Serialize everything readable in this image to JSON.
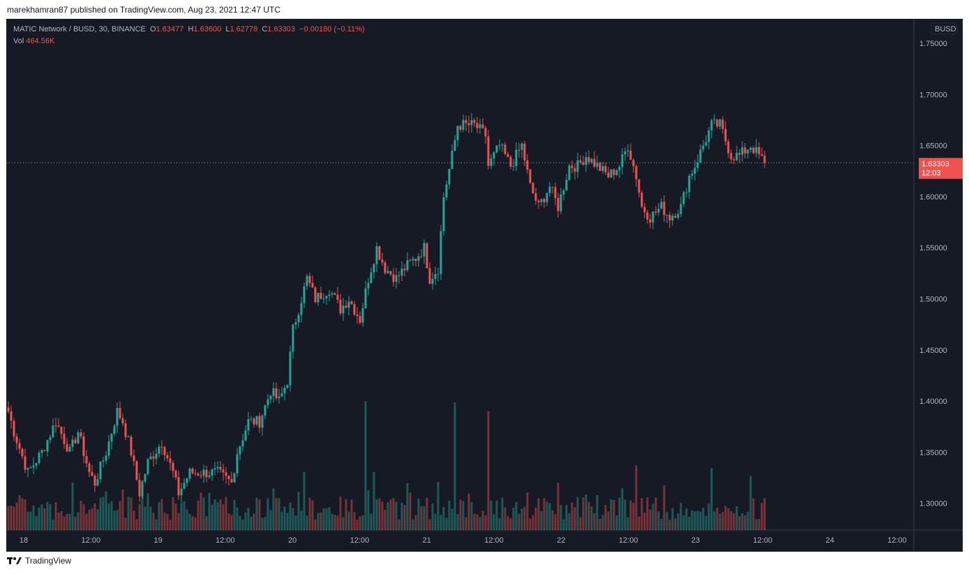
{
  "published": "marekhamran87 published on TradingView.com, Aug 23, 2021 12:47 UTC",
  "legend": {
    "symbol": "MATIC Network / BUSD, 30, BINANCE",
    "o_label": "O",
    "o": "1.63477",
    "h_label": "H",
    "h": "1.63600",
    "l_label": "L",
    "l": "1.62778",
    "c_label": "C",
    "c": "1.63303",
    "change": "−0.00180 (−0.11%)",
    "vol_label": "Vol",
    "vol": "464.56K"
  },
  "footer": {
    "brand": "TradingView"
  },
  "colors": {
    "up": "#26a69a",
    "down": "#ef5350",
    "bg": "#161a25"
  },
  "chart_data": {
    "type": "candlestick",
    "title": "MATIC Network / BUSD, 30, BINANCE",
    "currency_badge": "BUSD",
    "last_price": "1.63303",
    "countdown": "12:03",
    "ylim": [
      1.275,
      1.772
    ],
    "y_ticks": [
      "1.75000",
      "1.70000",
      "1.65000",
      "1.60000",
      "1.55000",
      "1.50000",
      "1.45000",
      "1.40000",
      "1.35000",
      "1.30000"
    ],
    "x_ticks": [
      "18",
      "12:00",
      "19",
      "12:00",
      "20",
      "12:00",
      "21",
      "12:00",
      "22",
      "12:00",
      "23",
      "12:00",
      "24",
      "12:00"
    ],
    "note": "approximate close keypoints [candle index (30m), price]",
    "close_keypoints": [
      [
        0,
        1.39
      ],
      [
        2,
        1.37
      ],
      [
        7,
        1.33
      ],
      [
        12,
        1.35
      ],
      [
        17,
        1.38
      ],
      [
        22,
        1.35
      ],
      [
        25,
        1.37
      ],
      [
        29,
        1.33
      ],
      [
        31,
        1.32
      ],
      [
        35,
        1.35
      ],
      [
        39,
        1.39
      ],
      [
        41,
        1.38
      ],
      [
        44,
        1.35
      ],
      [
        47,
        1.31
      ],
      [
        50,
        1.34
      ],
      [
        55,
        1.36
      ],
      [
        59,
        1.33
      ],
      [
        61,
        1.31
      ],
      [
        65,
        1.33
      ],
      [
        70,
        1.33
      ],
      [
        75,
        1.33
      ],
      [
        80,
        1.32
      ],
      [
        82,
        1.35
      ],
      [
        86,
        1.38
      ],
      [
        90,
        1.38
      ],
      [
        94,
        1.41
      ],
      [
        97,
        1.4
      ],
      [
        100,
        1.42
      ],
      [
        102,
        1.47
      ],
      [
        105,
        1.5
      ],
      [
        107,
        1.52
      ],
      [
        110,
        1.5
      ],
      [
        115,
        1.51
      ],
      [
        119,
        1.49
      ],
      [
        122,
        1.5
      ],
      [
        126,
        1.48
      ],
      [
        129,
        1.52
      ],
      [
        132,
        1.55
      ],
      [
        135,
        1.53
      ],
      [
        139,
        1.52
      ],
      [
        142,
        1.53
      ],
      [
        146,
        1.54
      ],
      [
        149,
        1.55
      ],
      [
        151,
        1.52
      ],
      [
        154,
        1.53
      ],
      [
        156,
        1.6
      ],
      [
        159,
        1.64
      ],
      [
        161,
        1.67
      ],
      [
        164,
        1.67
      ],
      [
        167,
        1.67
      ],
      [
        171,
        1.66
      ],
      [
        172,
        1.63
      ],
      [
        176,
        1.65
      ],
      [
        180,
        1.63
      ],
      [
        184,
        1.65
      ],
      [
        187,
        1.61
      ],
      [
        190,
        1.59
      ],
      [
        194,
        1.61
      ],
      [
        197,
        1.59
      ],
      [
        201,
        1.63
      ],
      [
        204,
        1.63
      ],
      [
        207,
        1.64
      ],
      [
        211,
        1.63
      ],
      [
        215,
        1.62
      ],
      [
        219,
        1.63
      ],
      [
        222,
        1.65
      ],
      [
        225,
        1.62
      ],
      [
        227,
        1.59
      ],
      [
        230,
        1.58
      ],
      [
        234,
        1.59
      ],
      [
        237,
        1.58
      ],
      [
        241,
        1.59
      ],
      [
        244,
        1.62
      ],
      [
        246,
        1.63
      ],
      [
        249,
        1.65
      ],
      [
        252,
        1.67
      ],
      [
        255,
        1.67
      ],
      [
        259,
        1.64
      ],
      [
        262,
        1.64
      ],
      [
        266,
        1.65
      ],
      [
        269,
        1.64
      ],
      [
        271,
        1.633
      ]
    ],
    "volume_spikes": [
      [
        128,
        1.0
      ],
      [
        160,
        0.99
      ],
      [
        172,
        0.92
      ],
      [
        225,
        0.5
      ],
      [
        252,
        0.48
      ],
      [
        266,
        0.42
      ],
      [
        106,
        0.45
      ],
      [
        131,
        0.45
      ]
    ]
  }
}
